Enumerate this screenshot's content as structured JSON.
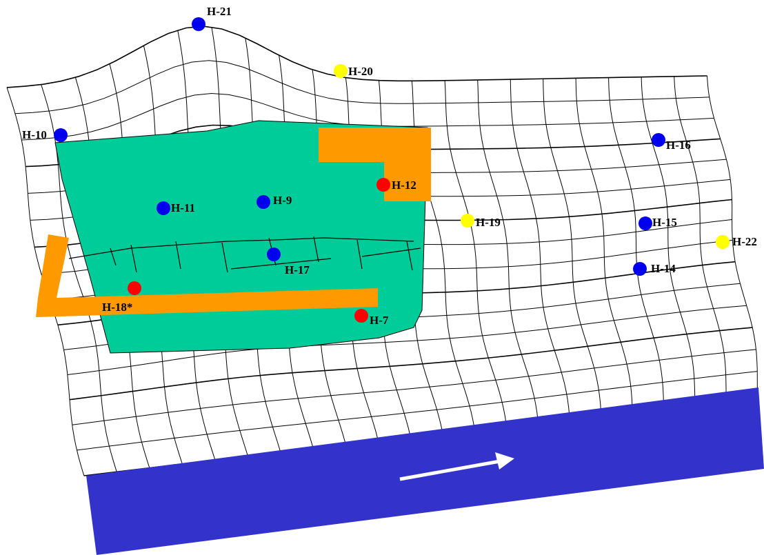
{
  "wells": [
    {
      "label": "H-21"
    },
    {
      "label": "H-20"
    },
    {
      "label": "H-10"
    },
    {
      "label": "H-16"
    },
    {
      "label": "H-12"
    },
    {
      "label": "H-11"
    },
    {
      "label": "H-9"
    },
    {
      "label": "H-19"
    },
    {
      "label": "H-15"
    },
    {
      "label": "H-22"
    },
    {
      "label": "H-17"
    },
    {
      "label": "H-14"
    },
    {
      "label": "H-18*"
    },
    {
      "label": "H-7"
    }
  ]
}
